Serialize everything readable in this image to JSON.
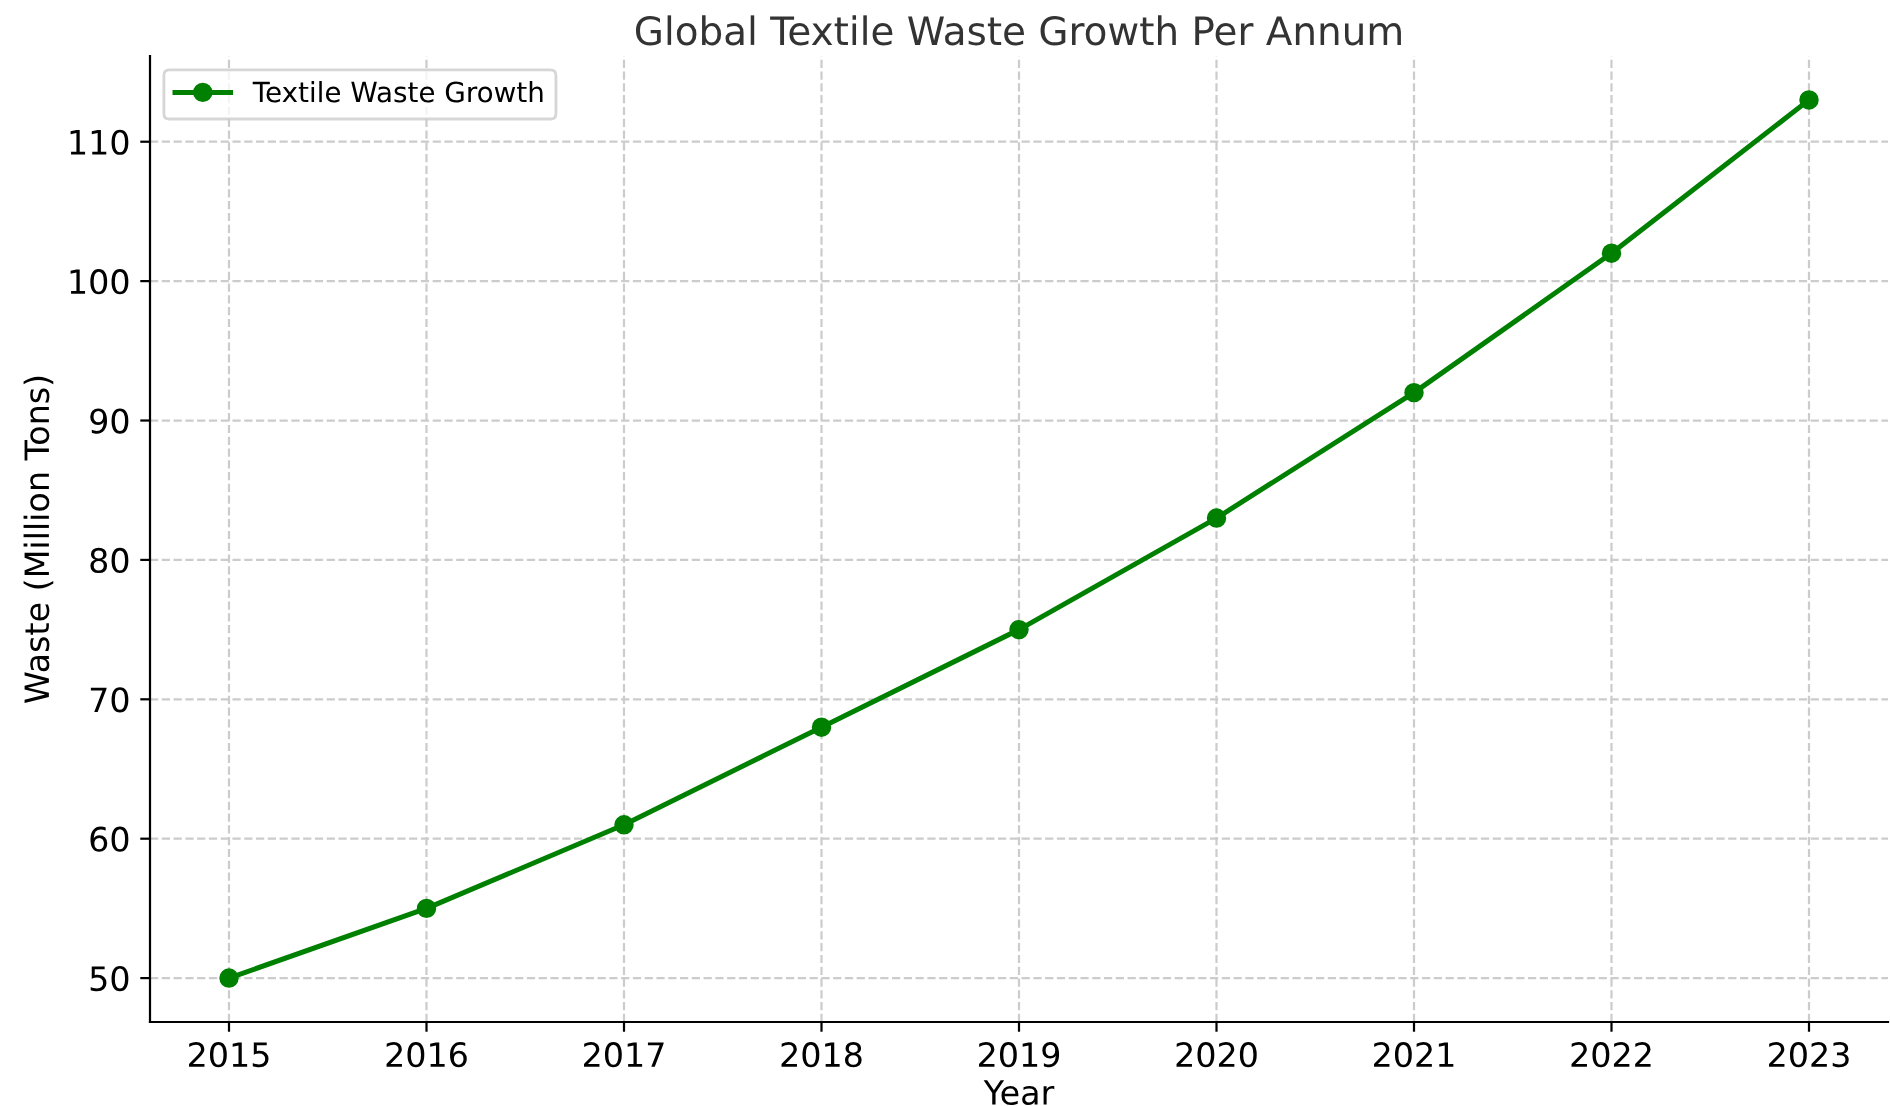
{
  "chart_data": {
    "type": "line",
    "title": "Global Textile Waste Growth Per Annum",
    "xlabel": "Year",
    "ylabel": "Waste (Million Tons)",
    "x": [
      2015,
      2016,
      2017,
      2018,
      2019,
      2020,
      2021,
      2022,
      2023
    ],
    "series": [
      {
        "name": "Textile Waste Growth",
        "color": "#008000",
        "values": [
          50,
          55,
          61,
          68,
          75,
          83,
          92,
          102,
          113
        ]
      }
    ],
    "xlim": [
      2014.6,
      2023.4
    ],
    "ylim": [
      46.85,
      116.15
    ],
    "xticks": [
      2015,
      2016,
      2017,
      2018,
      2019,
      2020,
      2021,
      2022,
      2023
    ],
    "yticks": [
      50,
      60,
      70,
      80,
      90,
      100,
      110
    ],
    "grid": true,
    "legend": "top left",
    "marker": "circle",
    "line_style": "solid"
  }
}
